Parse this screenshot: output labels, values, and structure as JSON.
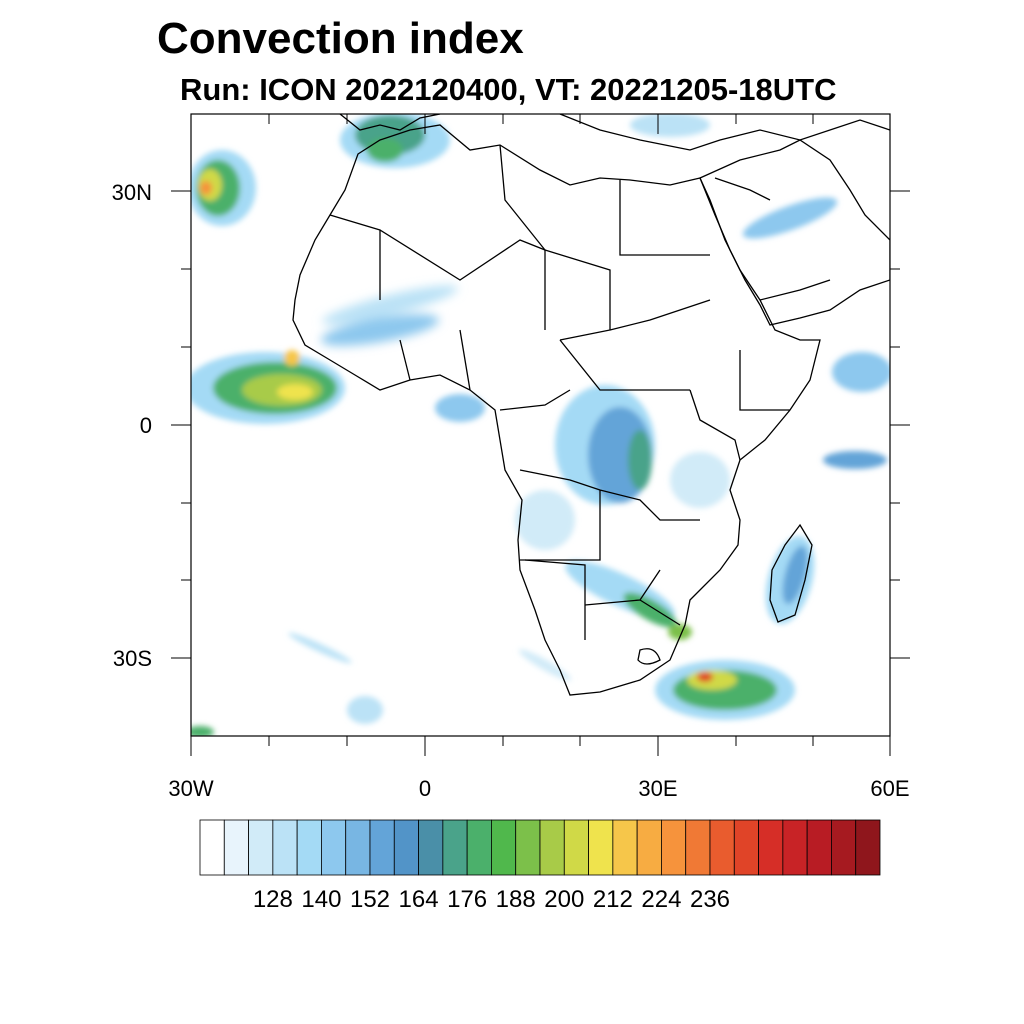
{
  "title": "Convection index",
  "subtitle": "Run: ICON 2022120400,  VT: 20221205-18UTC",
  "map": {
    "lat_labels": [
      "30N",
      "0",
      "30S"
    ],
    "lon_labels": [
      "30W",
      "0",
      "30E",
      "60E"
    ],
    "extent": {
      "lon": [
        -30,
        60
      ],
      "lat": [
        -40,
        40
      ]
    },
    "land_color": "#ffffff",
    "border_color": "#000000"
  },
  "colorbar": {
    "labels": [
      "128",
      "140",
      "152",
      "164",
      "176",
      "188",
      "200",
      "212",
      "224",
      "236"
    ],
    "colors": [
      "#ffffff",
      "#e8f4fc",
      "#d1ebf8",
      "#bbe2f6",
      "#a4daf5",
      "#8dc8ee",
      "#78b6e3",
      "#63a4d8",
      "#5294c8",
      "#4a8fa8",
      "#4aa38a",
      "#4bb06b",
      "#50b84c",
      "#7cc04a",
      "#a8cb48",
      "#d0d947",
      "#efe34d",
      "#f6c64a",
      "#f7ac42",
      "#f6933c",
      "#f07935",
      "#e95c2e",
      "#e04428",
      "#d62e27",
      "#c82326",
      "#b81c24",
      "#a61a20",
      "#8f161c"
    ]
  },
  "chart_data": {
    "type": "heatmap",
    "title": "Convection index",
    "subtitle": "Run: ICON 2022120400,  VT: 20221205-18UTC",
    "xlim": [
      -30,
      60
    ],
    "ylim": [
      -40,
      40
    ],
    "x_ticks": [
      "30W",
      "0",
      "30E",
      "60E"
    ],
    "y_ticks": [
      "30N",
      "0",
      "30S"
    ],
    "colorbar_ticks": [
      128,
      140,
      152,
      164,
      176,
      188,
      200,
      212,
      224,
      236
    ]
  }
}
